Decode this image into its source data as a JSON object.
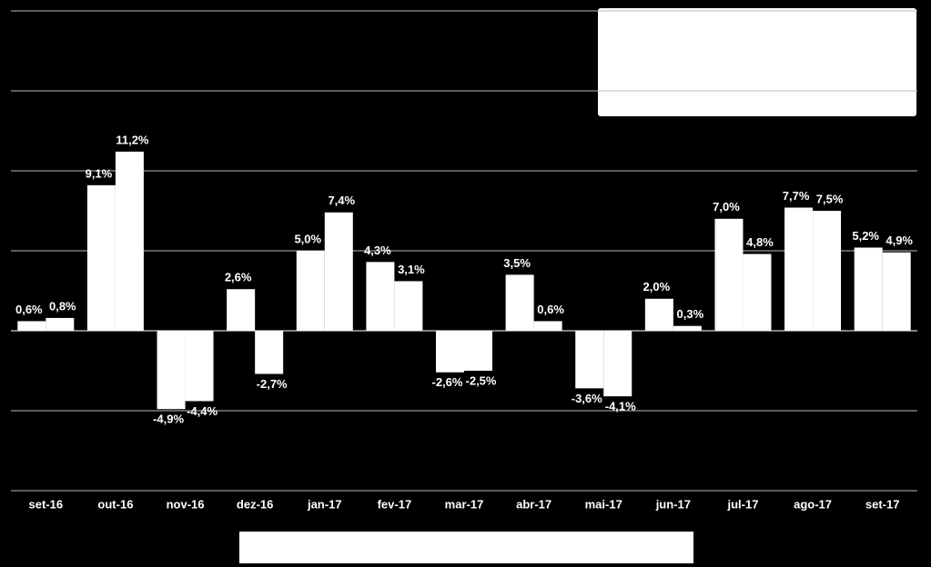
{
  "chart_data": {
    "type": "bar",
    "categories": [
      "set-16",
      "out-16",
      "nov-16",
      "dez-16",
      "jan-17",
      "fev-17",
      "mar-17",
      "abr-17",
      "mai-17",
      "jun-17",
      "jul-17",
      "ago-17",
      "set-17"
    ],
    "series": [
      {
        "color": "#ffffff",
        "values": [
          0.6,
          9.1,
          -4.9,
          2.6,
          5.0,
          4.3,
          -2.6,
          3.5,
          -3.6,
          2.0,
          7.0,
          7.7,
          5.2
        ],
        "value_labels": [
          "0,6%",
          "9,1%",
          "-4,9%",
          "2,6%",
          "5,0%",
          "4,3%",
          "-2,6%",
          "3,5%",
          "-3,6%",
          "2,0%",
          "7,0%",
          "7,7%",
          "5,2%"
        ]
      },
      {
        "color": "#ffffff",
        "values": [
          0.8,
          11.2,
          -4.4,
          -2.7,
          7.4,
          3.1,
          -2.5,
          0.6,
          -4.1,
          0.3,
          4.8,
          7.5,
          4.9
        ],
        "value_labels": [
          "0,8%",
          "11,2%",
          "-4,4%",
          "-2,7%",
          "7,4%",
          "3,1%",
          "-2,5%",
          "0,6%",
          "-4,1%",
          "0,3%",
          "4,8%",
          "7,5%",
          "4,9%"
        ]
      }
    ],
    "ylim": [
      -10,
      20
    ],
    "yticks": [
      -10,
      -5,
      0,
      5,
      10,
      15,
      20
    ],
    "grid": true,
    "show_tick_labels": false
  }
}
